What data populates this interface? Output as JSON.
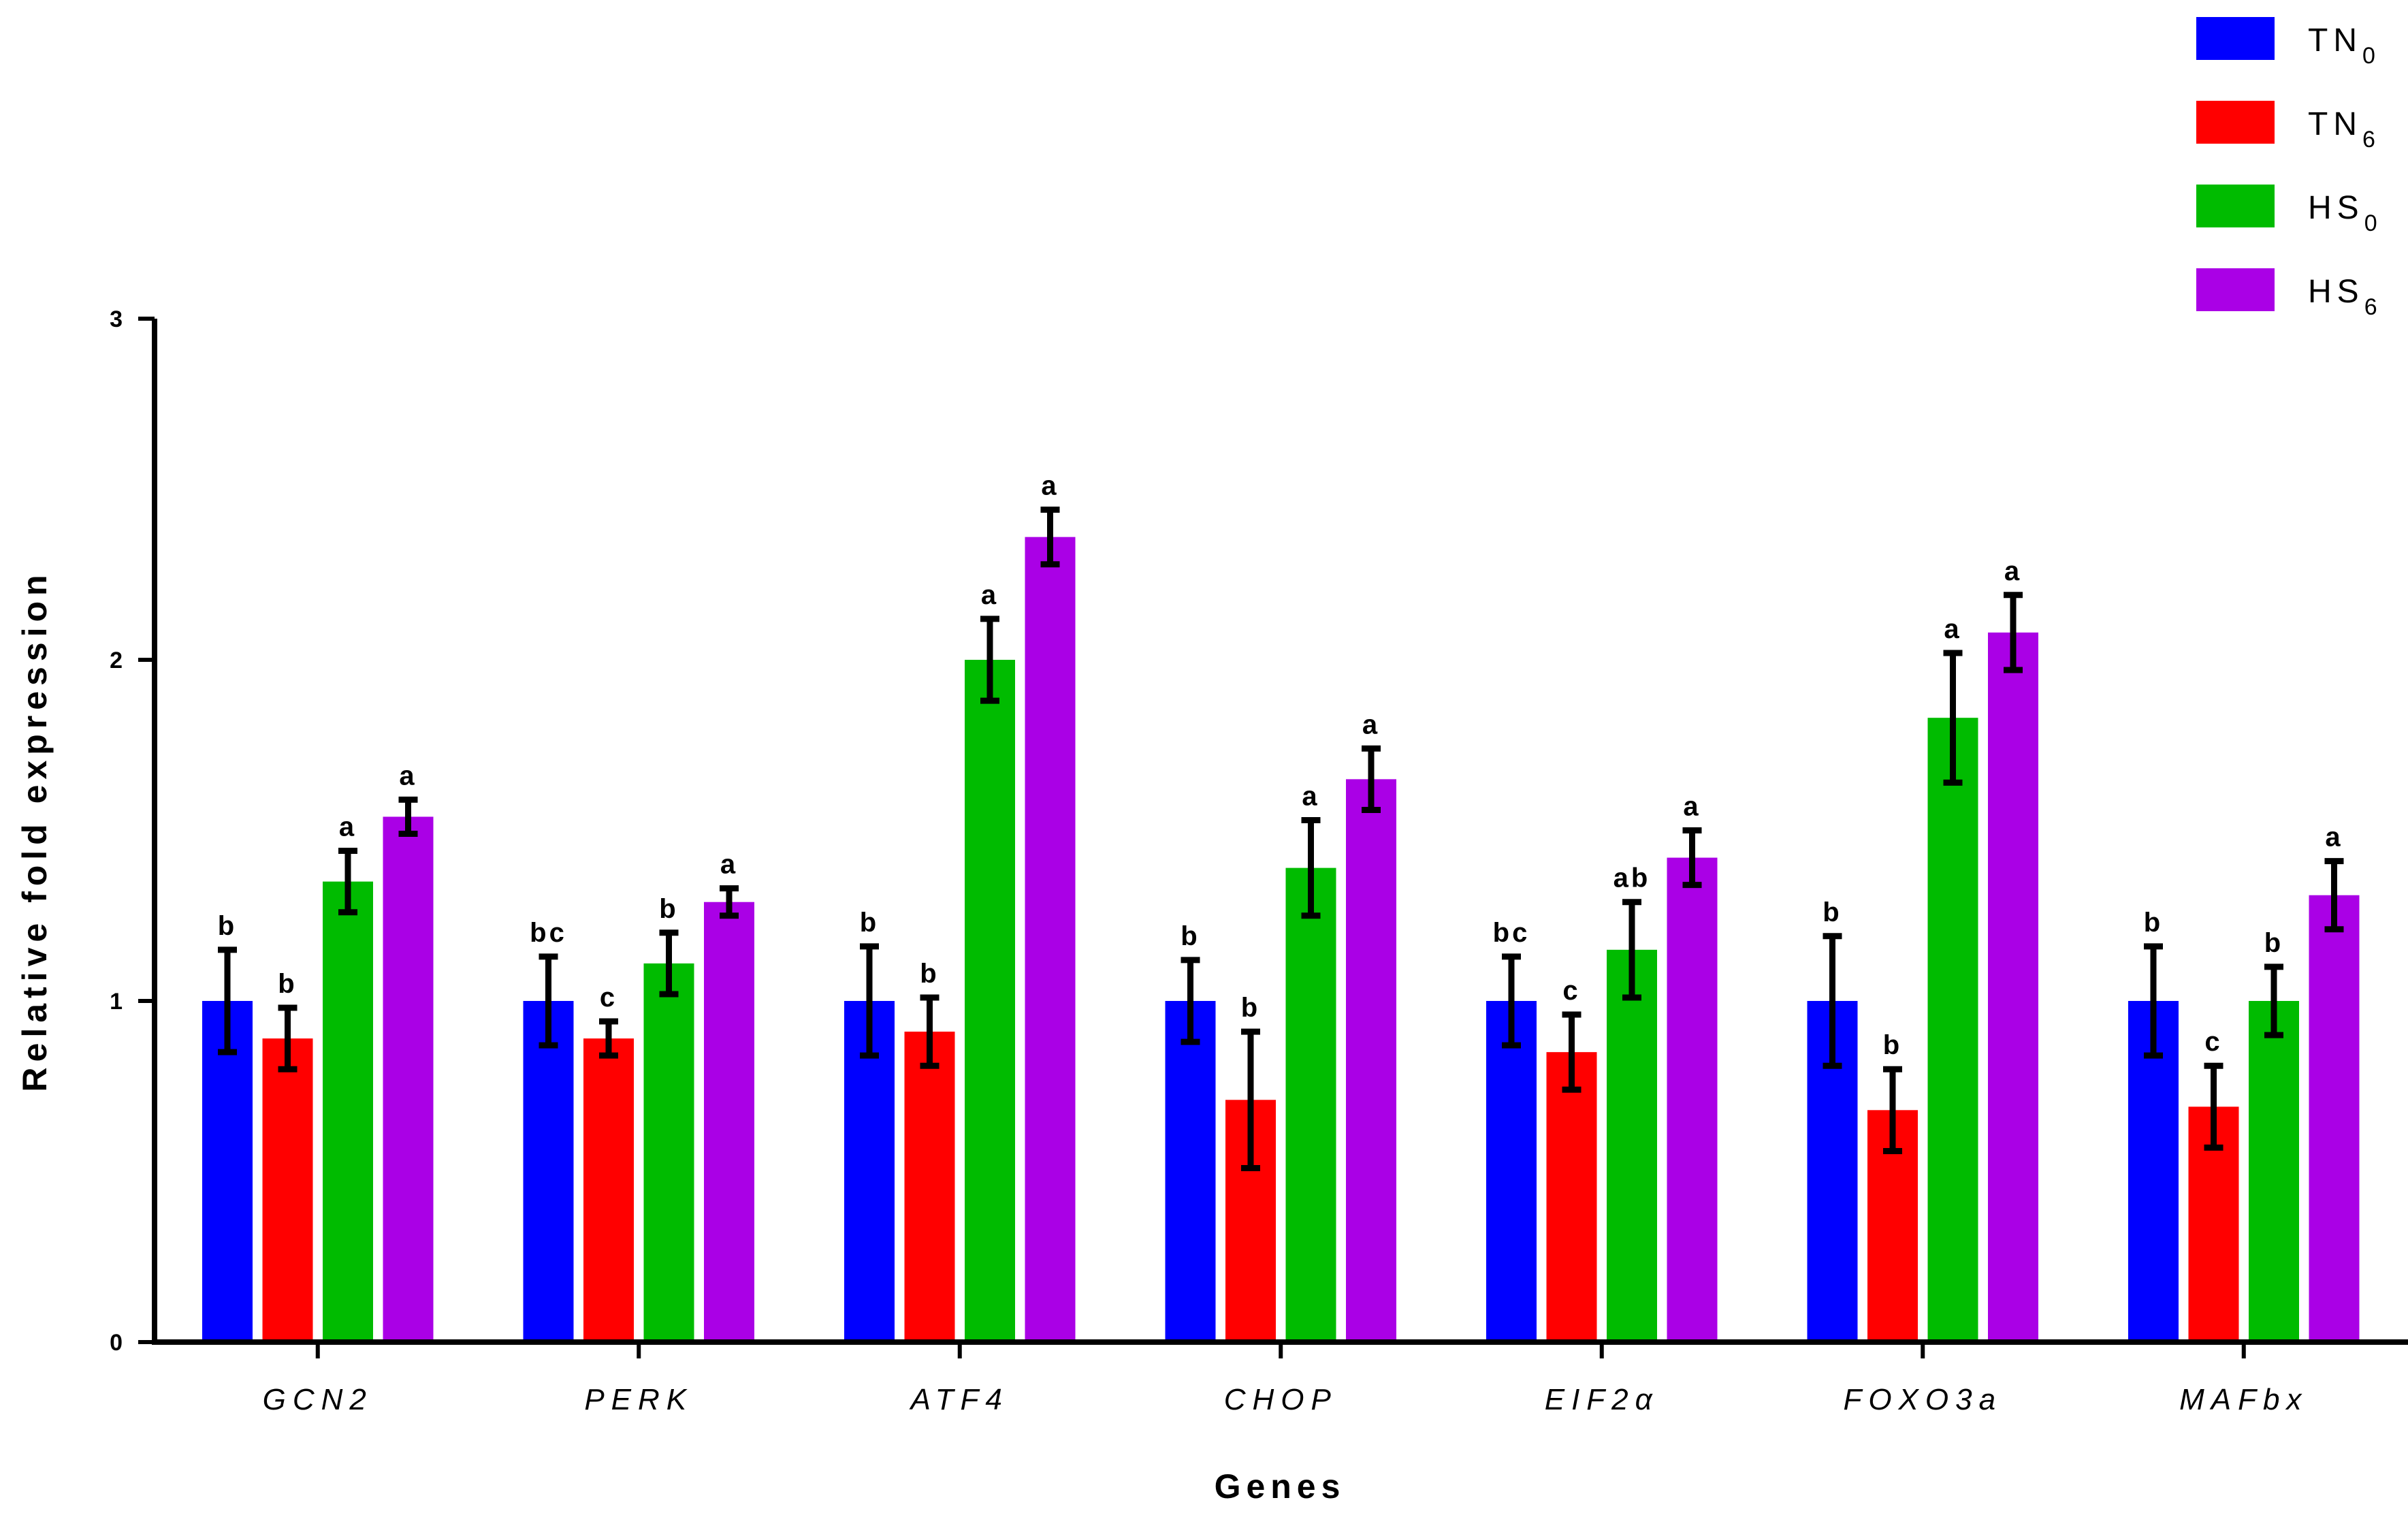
{
  "chart_data": {
    "type": "bar",
    "title": "",
    "xlabel": "Genes",
    "ylabel": "Relative fold expression",
    "ylim": [
      0,
      3
    ],
    "yticks": [
      "0",
      "1",
      "2",
      "3"
    ],
    "grid": false,
    "legend_position": "top-right",
    "categories": [
      "GCN2",
      "PERK",
      "ATF4",
      "CHOP",
      "EIF2α",
      "FOXO3a",
      "MAFbx"
    ],
    "series": [
      {
        "name": "TN",
        "subscript": "0",
        "color": "#0000ff",
        "values": [
          1.0,
          1.0,
          1.0,
          1.0,
          1.0,
          1.0,
          1.0
        ],
        "errors": [
          0.15,
          0.13,
          0.16,
          0.12,
          0.13,
          0.19,
          0.16
        ],
        "letters": [
          "b",
          "bc",
          "b",
          "b",
          "bc",
          "b",
          "b"
        ]
      },
      {
        "name": "TN",
        "subscript": "6",
        "color": "#ff0000",
        "values": [
          0.89,
          0.89,
          0.91,
          0.71,
          0.85,
          0.68,
          0.69
        ],
        "errors": [
          0.09,
          0.05,
          0.1,
          0.2,
          0.11,
          0.12,
          0.12
        ],
        "letters": [
          "b",
          "c",
          "b",
          "b",
          "c",
          "b",
          "c"
        ]
      },
      {
        "name": "HS",
        "subscript": "0",
        "color": "#00bb00",
        "values": [
          1.35,
          1.11,
          2.0,
          1.39,
          1.15,
          1.83,
          1.0
        ],
        "errors": [
          0.09,
          0.09,
          0.12,
          0.14,
          0.14,
          0.19,
          0.1
        ],
        "letters": [
          "a",
          "b",
          "a",
          "a",
          "ab",
          "a",
          "b"
        ]
      },
      {
        "name": "HS",
        "subscript": "6",
        "color": "#aa00e6",
        "values": [
          1.54,
          1.29,
          2.36,
          1.65,
          1.42,
          2.08,
          1.31
        ],
        "errors": [
          0.05,
          0.04,
          0.08,
          0.09,
          0.08,
          0.11,
          0.1
        ],
        "letters": [
          "a",
          "a",
          "a",
          "a",
          "a",
          "a",
          "a"
        ]
      }
    ]
  }
}
